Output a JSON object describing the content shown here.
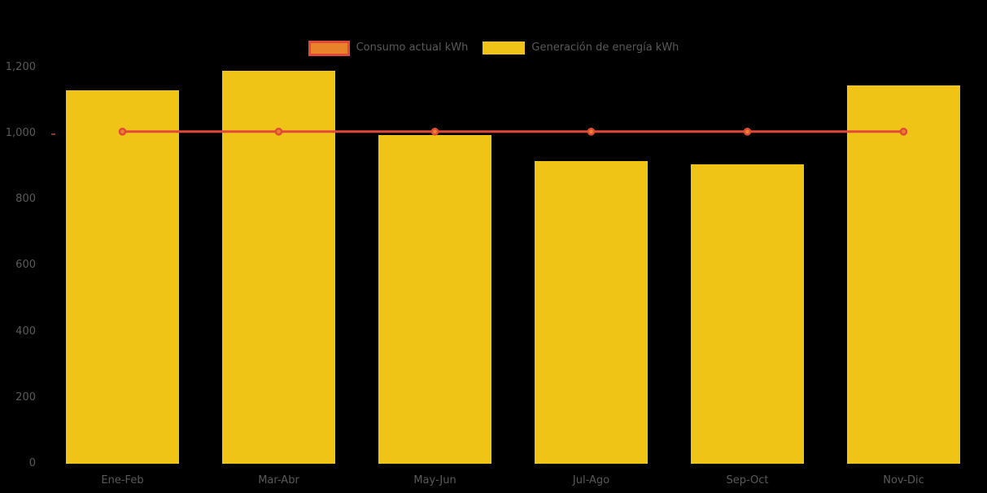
{
  "colors": {
    "background": "#000000",
    "bar_yellow": "#F0C417",
    "line_red": "#E2483A",
    "marker_orange": "#E8822B",
    "axis_text_gray": "#5A5A5A"
  },
  "chart_data": {
    "type": "bar",
    "title": "",
    "xlabel": "",
    "ylabel": "",
    "categories": [
      "Ene-Feb",
      "Mar-Abr",
      "May-Jun",
      "Jul-Ago",
      "Sep-Oct",
      "Nov-Dic"
    ],
    "series": [
      {
        "name": "Consumo actual kWh",
        "type": "line",
        "values": [
          1005,
          1005,
          1005,
          1005,
          1005,
          1005
        ],
        "color": "#E2483A",
        "marker_fill": "#E8822B"
      },
      {
        "name": "Generación de energía kWh",
        "type": "bar",
        "values": [
          1130,
          1190,
          995,
          915,
          905,
          1145
        ],
        "color": "#F0C417"
      }
    ],
    "ylim": [
      0,
      1200
    ],
    "y_tick_values": [
      0,
      200,
      400,
      600,
      800,
      1000,
      1200
    ],
    "y_tick_labels": [
      "0",
      "200",
      "400",
      "600",
      "800",
      "1,000",
      "1,200"
    ],
    "grid": false,
    "legend_position": "top",
    "axis_text_color": "#5A5A5A",
    "background": "#000000"
  }
}
